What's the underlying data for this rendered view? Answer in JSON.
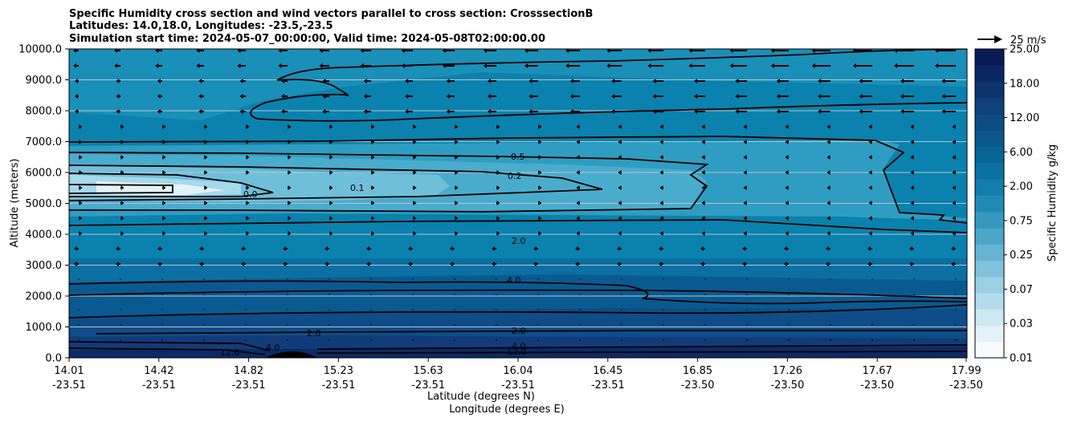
{
  "chart_data": {
    "type": "contour",
    "title_lines": [
      "Specific Humidity cross section and wind vectors parallel to cross section: CrosssectionB",
      "Latitudes: 14.0,18.0, Longitudes: -23.5,-23.5",
      "Simulation start time: 2024-05-07_00:00:00, Valid time: 2024-05-08T02:00:00.00"
    ],
    "ylabel": "Altitude (meters)",
    "xlabel_lat": "Latitude (degrees N)",
    "xlabel_lon": "Longitude (degrees E)",
    "ylim": [
      0,
      10000
    ],
    "y_ticks": [
      "0.0",
      "1000.0",
      "2000.0",
      "3000.0",
      "4000.0",
      "5000.0",
      "6000.0",
      "7000.0",
      "8000.0",
      "9000.0",
      "10000.0"
    ],
    "x_ticks": [
      {
        "lat": "14.01",
        "lon": "-23.51"
      },
      {
        "lat": "14.42",
        "lon": "-23.51"
      },
      {
        "lat": "14.82",
        "lon": "-23.51"
      },
      {
        "lat": "15.23",
        "lon": "-23.51"
      },
      {
        "lat": "15.63",
        "lon": "-23.51"
      },
      {
        "lat": "16.04",
        "lon": "-23.51"
      },
      {
        "lat": "16.45",
        "lon": "-23.51"
      },
      {
        "lat": "16.85",
        "lon": "-23.50"
      },
      {
        "lat": "17.26",
        "lon": "-23.50"
      },
      {
        "lat": "17.67",
        "lon": "-23.50"
      },
      {
        "lat": "17.99",
        "lon": "-23.50"
      }
    ],
    "colorbar": {
      "label": "Specific Humidity g/kg",
      "tick_labels": [
        "0.01",
        "0.03",
        "0.07",
        "0.25",
        "0.75",
        "2.00",
        "6.00",
        "12.00",
        "18.00",
        "25.00"
      ]
    },
    "quiver_key": "25 m/s",
    "contour_labels": [
      "0.5",
      "0.2",
      "0.1",
      "0.0",
      "2.0",
      "4.0",
      "12.0"
    ],
    "grid": true
  }
}
